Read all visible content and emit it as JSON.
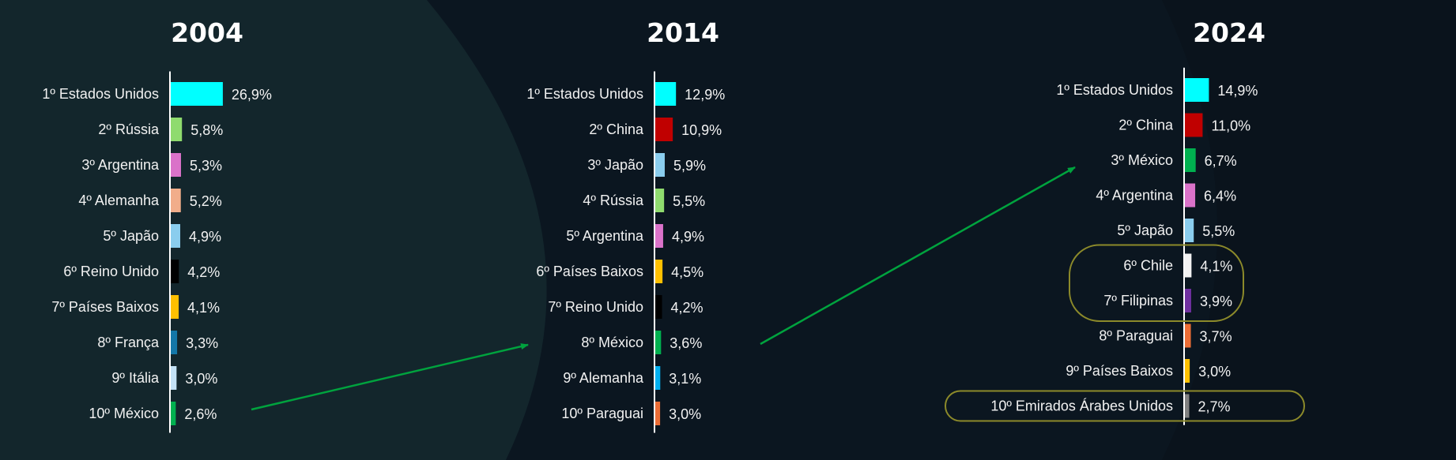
{
  "chart_data": [
    {
      "type": "bar",
      "orientation": "horizontal",
      "title": "2004",
      "unit": "%",
      "categories": [
        "1º Estados Unidos",
        "2º Rússia",
        "3º Argentina",
        "4º Alemanha",
        "5º Japão",
        "6º Reino Unido",
        "7º Países Baixos",
        "8º França",
        "9º Itália",
        "10º México"
      ],
      "values": [
        26.9,
        5.8,
        5.3,
        5.2,
        4.9,
        4.2,
        4.1,
        3.3,
        3.0,
        2.6
      ],
      "value_labels": [
        "26,9%",
        "5,8%",
        "5,3%",
        "5,2%",
        "4,9%",
        "4,2%",
        "4,1%",
        "3,3%",
        "3,0%",
        "2,6%"
      ],
      "colors": [
        "#00ffff",
        "#8fdb6e",
        "#da72c9",
        "#f1ad8a",
        "#8acdee",
        "#000000",
        "#ffc000",
        "#1477a8",
        "#c4e2f6",
        "#00b04f"
      ]
    },
    {
      "type": "bar",
      "orientation": "horizontal",
      "title": "2014",
      "unit": "%",
      "categories": [
        "1º Estados Unidos",
        "2º China",
        "3º Japão",
        "4º Rússia",
        "5º Argentina",
        "6º Países Baixos",
        "7º Reino Unido",
        "8º México",
        "9º Alemanha",
        "10º Paraguai"
      ],
      "values": [
        12.9,
        10.9,
        5.9,
        5.5,
        4.9,
        4.5,
        4.2,
        3.6,
        3.1,
        3.0
      ],
      "value_labels": [
        "12,9%",
        "10,9%",
        "5,9%",
        "5,5%",
        "4,9%",
        "4,5%",
        "4,2%",
        "3,6%",
        "3,1%",
        "3,0%"
      ],
      "colors": [
        "#00ffff",
        "#c00000",
        "#8acdee",
        "#8fdb6e",
        "#da72c9",
        "#ffc000",
        "#000000",
        "#00b04f",
        "#00b0f0",
        "#ec6d35"
      ]
    },
    {
      "type": "bar",
      "orientation": "horizontal",
      "title": "2024",
      "unit": "%",
      "categories": [
        "1º Estados Unidos",
        "2º China",
        "3º México",
        "4º Argentina",
        "5º Japão",
        "6º Chile",
        "7º Filipinas",
        "8º Paraguai",
        "9º Países Baixos",
        "10º Emirados Árabes Unidos"
      ],
      "values": [
        14.9,
        11.0,
        6.7,
        6.4,
        5.5,
        4.1,
        3.9,
        3.7,
        3.0,
        2.7
      ],
      "value_labels": [
        "14,9%",
        "11,0%",
        "6,7%",
        "6,4%",
        "5,5%",
        "4,1%",
        "3,9%",
        "3,7%",
        "3,0%",
        "2,7%"
      ],
      "colors": [
        "#00ffff",
        "#c00000",
        "#00b04f",
        "#da72c9",
        "#8acdee",
        "#f2f2f2",
        "#7030a0",
        "#ec6d35",
        "#ffc000",
        "#808080"
      ],
      "highlighted": [
        "6º Chile",
        "7º Filipinas",
        "10º Emirados Árabes Unidos"
      ]
    }
  ],
  "annotations": {
    "mexico_trajectory_arrows": "México 2004 → 2014 → 2024",
    "arrow_color": "#00a33e",
    "highlight_outline_color": "#8c8a2a"
  },
  "theme": {
    "background": "#0b1620",
    "arc_fill": "#13262c",
    "axis_color": "#ffffff",
    "text_color": "#f2f2f2"
  }
}
